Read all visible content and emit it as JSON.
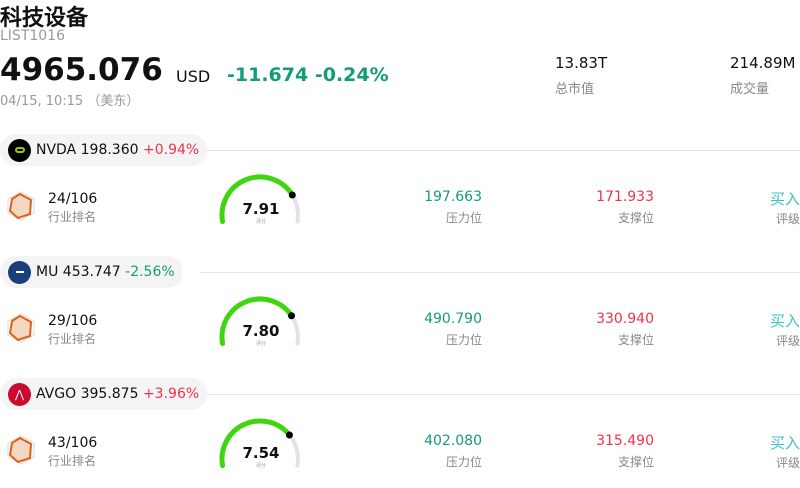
{
  "header": {
    "title": "科技设备",
    "code": "LIST1016",
    "price": "4965.076",
    "currency": "USD",
    "change": "-11.674",
    "change_pct": "-0.24%",
    "time": "04/15, 10:15 （美东）"
  },
  "stats": [
    {
      "value": "13.83T",
      "label": "总市值"
    },
    {
      "value": "214.89M",
      "label": "成交量"
    }
  ],
  "colors": {
    "up": "#f0334a",
    "down": "#149b7c",
    "gauge": "#3fd60f",
    "buy": "#3cc3c3"
  },
  "stocks": [
    {
      "ticker": "NVDA",
      "price": "198.360",
      "change": "+0.94%",
      "direction": "up",
      "logo_color": "#000000",
      "rank": "24/106",
      "rank_label": "行业排名",
      "score": "7.91",
      "score_value": 7.91,
      "score_label": "评分",
      "resistance": "197.663",
      "resistance_label": "压力位",
      "support": "171.933",
      "support_label": "支撑位",
      "rating": "买入",
      "rating_label": "评级"
    },
    {
      "ticker": "MU",
      "price": "453.747",
      "change": "-2.56%",
      "direction": "down",
      "logo_color": "#1b3f7a",
      "rank": "29/106",
      "rank_label": "行业排名",
      "score": "7.80",
      "score_value": 7.8,
      "score_label": "评分",
      "resistance": "490.790",
      "resistance_label": "压力位",
      "support": "330.940",
      "support_label": "支撑位",
      "rating": "买入",
      "rating_label": "评级"
    },
    {
      "ticker": "AVGO",
      "price": "395.875",
      "change": "+3.96%",
      "direction": "up",
      "logo_color": "#cc092f",
      "rank": "43/106",
      "rank_label": "行业排名",
      "score": "7.54",
      "score_value": 7.54,
      "score_label": "评分",
      "resistance": "402.080",
      "resistance_label": "压力位",
      "support": "315.490",
      "support_label": "支撑位",
      "rating": "买入",
      "rating_label": "评级"
    }
  ]
}
